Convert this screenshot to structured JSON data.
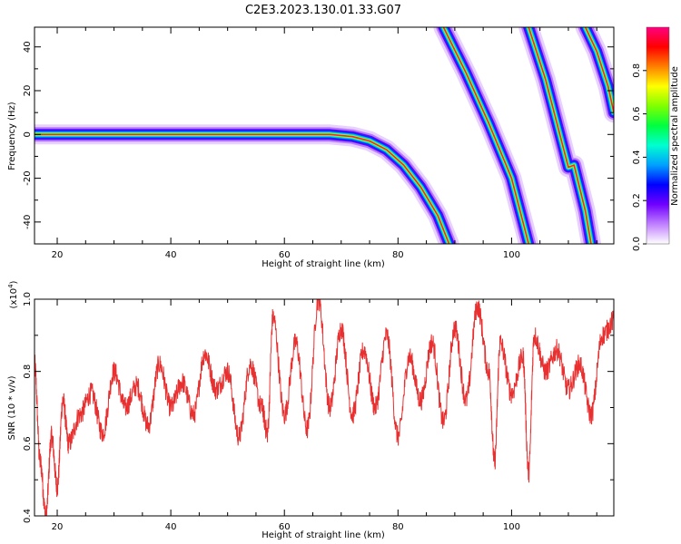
{
  "title": "C2E3.2023.130.01.33.G07",
  "chart_data": [
    {
      "type": "heatmap",
      "xlabel": "Height of straight line (km)",
      "ylabel": "Frequency (Hz)",
      "xlim": [
        16,
        118
      ],
      "ylim": [
        -50,
        49
      ],
      "x_ticks": [
        20,
        40,
        60,
        80,
        100
      ],
      "y_ticks": [
        -40,
        -20,
        0,
        20,
        40
      ],
      "colorbar": {
        "label": "Normalized spectral amplitude",
        "range": [
          0.0,
          1.0
        ],
        "ticks": [
          "0.0",
          "0.2",
          "0.4",
          "0.6",
          "0.8"
        ],
        "tick_values": [
          0.0,
          0.2,
          0.4,
          0.6,
          0.8
        ],
        "colors": [
          "#ffffff",
          "#c080ff",
          "#7000ff",
          "#0000ff",
          "#00a0ff",
          "#00ffd0",
          "#00ff40",
          "#80ff00",
          "#ffff00",
          "#ff8000",
          "#ff0000",
          "#ff0080"
        ]
      },
      "tracks": [
        {
          "name": "",
          "x": [
            16,
            30,
            45,
            60,
            68,
            72,
            75,
            78,
            81,
            84,
            87,
            89
          ],
          "y": [
            0,
            0,
            0,
            0,
            0,
            -1,
            -3,
            -7,
            -14,
            -24,
            -37,
            -50
          ]
        },
        {
          "name": "",
          "x": [
            88,
            92,
            96,
            100,
            103
          ],
          "y": [
            49,
            28,
            5,
            -20,
            -50
          ]
        },
        {
          "name": "",
          "x": [
            103,
            106,
            109,
            110,
            111,
            113,
            114
          ],
          "y": [
            49,
            25,
            -5,
            -15,
            -14,
            -35,
            -50
          ]
        },
        {
          "name": "",
          "x": [
            113,
            115,
            117,
            118
          ],
          "y": [
            49,
            38,
            22,
            10
          ]
        }
      ]
    },
    {
      "type": "line",
      "xlabel": "Height of straight line (km)",
      "ylabel": "SNR (10 * v/v)",
      "scale_note": "(x10",
      "scale_exp": "4",
      "scale_close": ")",
      "xlim": [
        16,
        118
      ],
      "ylim": [
        0.4,
        1.0
      ],
      "x_ticks": [
        20,
        40,
        60,
        80,
        100
      ],
      "y_ticks": [
        0.4,
        0.6,
        0.8,
        1.0
      ],
      "y_tick_labels": [
        "0.4",
        "0.6",
        "0.8",
        "1.0"
      ],
      "line_color": "#e83030",
      "series": [
        {
          "name": "",
          "x": [
            16,
            17,
            18,
            19,
            20,
            21,
            22,
            24,
            26,
            28,
            30,
            32,
            34,
            36,
            38,
            40,
            42,
            44,
            46,
            48,
            50,
            52,
            54,
            56,
            57,
            58,
            60,
            62,
            64,
            66,
            68,
            70,
            72,
            74,
            76,
            78,
            80,
            82,
            84,
            86,
            88,
            90,
            92,
            94,
            96,
            97,
            98,
            100,
            102,
            103,
            104,
            106,
            108,
            110,
            112,
            114,
            116,
            118
          ],
          "y": [
            0.82,
            0.55,
            0.4,
            0.62,
            0.48,
            0.72,
            0.6,
            0.68,
            0.74,
            0.63,
            0.8,
            0.7,
            0.76,
            0.65,
            0.82,
            0.7,
            0.77,
            0.68,
            0.85,
            0.75,
            0.8,
            0.62,
            0.82,
            0.7,
            0.63,
            0.95,
            0.68,
            0.88,
            0.64,
            1.0,
            0.7,
            0.92,
            0.68,
            0.86,
            0.7,
            0.9,
            0.62,
            0.84,
            0.72,
            0.88,
            0.66,
            0.92,
            0.72,
            0.98,
            0.8,
            0.55,
            0.88,
            0.74,
            0.84,
            0.52,
            0.9,
            0.8,
            0.86,
            0.75,
            0.82,
            0.68,
            0.9,
            0.94
          ]
        }
      ]
    }
  ]
}
